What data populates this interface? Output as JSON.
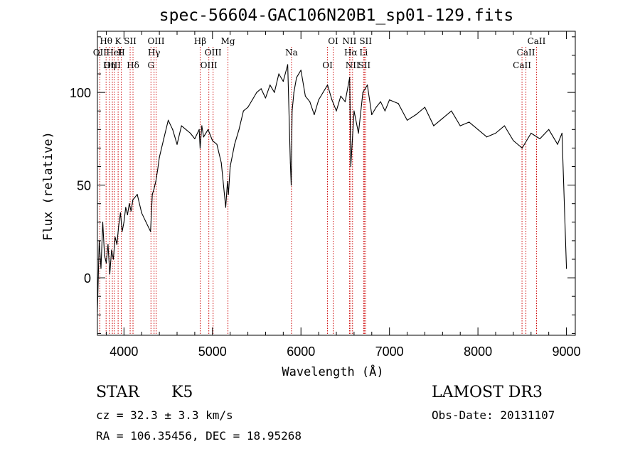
{
  "chart_data": {
    "type": "line",
    "title": "spec-56604-GAC106N20B1_sp01-129.fits",
    "xlabel": "Wavelength (Å)",
    "ylabel": "Flux (relative)",
    "xlim": [
      3700,
      9100
    ],
    "ylim": [
      -31,
      133
    ],
    "x_ticks": [
      4000,
      5000,
      6000,
      7000,
      8000,
      9000
    ],
    "y_ticks": [
      0,
      50,
      100
    ],
    "grid": false,
    "line_color": "#000000",
    "marker_color": "#cc0000",
    "series": [
      {
        "x": [
          3700,
          3720,
          3740,
          3760,
          3780,
          3800,
          3820,
          3840,
          3860,
          3880,
          3900,
          3920,
          3940,
          3960,
          3980,
          4000,
          4020,
          4040,
          4060,
          4080,
          4100,
          4150,
          4200,
          4250,
          4300,
          4320,
          4340,
          4360,
          4380,
          4400,
          4450,
          4500,
          4550,
          4600,
          4650,
          4700,
          4750,
          4800,
          4850,
          4860,
          4880,
          4900,
          4950,
          5000,
          5050,
          5100,
          5150,
          5170,
          5180,
          5200,
          5250,
          5300,
          5350,
          5400,
          5450,
          5500,
          5550,
          5600,
          5650,
          5700,
          5750,
          5800,
          5850,
          5880,
          5890,
          5900,
          5920,
          5950,
          6000,
          6050,
          6100,
          6150,
          6200,
          6250,
          6300,
          6350,
          6400,
          6450,
          6500,
          6550,
          6563,
          6600,
          6650,
          6700,
          6750,
          6800,
          6850,
          6900,
          6950,
          7000,
          7100,
          7200,
          7300,
          7400,
          7500,
          7600,
          7700,
          7800,
          7900,
          8000,
          8100,
          8200,
          8300,
          8400,
          8500,
          8600,
          8700,
          8800,
          8900,
          8950,
          9000
        ],
        "y": [
          -18,
          20,
          5,
          30,
          12,
          8,
          18,
          2,
          15,
          10,
          22,
          18,
          28,
          35,
          25,
          30,
          38,
          34,
          40,
          36,
          42,
          45,
          35,
          30,
          25,
          45,
          48,
          52,
          58,
          65,
          75,
          85,
          80,
          72,
          82,
          80,
          78,
          75,
          80,
          70,
          82,
          76,
          80,
          74,
          72,
          62,
          38,
          52,
          45,
          60,
          72,
          80,
          90,
          92,
          96,
          100,
          102,
          97,
          104,
          100,
          110,
          106,
          115,
          62,
          50,
          90,
          100,
          108,
          112,
          98,
          95,
          88,
          96,
          100,
          104,
          96,
          90,
          98,
          95,
          108,
          60,
          90,
          78,
          100,
          104,
          88,
          92,
          95,
          90,
          96,
          94,
          85,
          88,
          92,
          82,
          86,
          90,
          82,
          84,
          80,
          76,
          78,
          82,
          74,
          70,
          78,
          75,
          80,
          72,
          78,
          5
        ]
      }
    ],
    "line_markers": [
      {
        "label": "Hθ",
        "x": 3798
      },
      {
        "label": "OII",
        "x": 3727
      },
      {
        "label": "OIII",
        "x": 3869
      },
      {
        "label": "K",
        "x": 3934
      },
      {
        "label": "HeI",
        "x": 3889
      },
      {
        "label": "Hη",
        "x": 3835
      },
      {
        "label": "SII",
        "x": 4070
      },
      {
        "label": "H",
        "x": 3969
      },
      {
        "label": "Hδ",
        "x": 4102
      },
      {
        "label": "OIII",
        "x": 4363
      },
      {
        "label": "Hγ",
        "x": 4340
      },
      {
        "label": "G",
        "x": 4305
      },
      {
        "label": "Hβ",
        "x": 4861
      },
      {
        "label": "OIII",
        "x": 5007
      },
      {
        "label": "OIII",
        "x": 4959
      },
      {
        "label": "Mg",
        "x": 5175
      },
      {
        "label": "Na",
        "x": 5893
      },
      {
        "label": "OI",
        "x": 6300
      },
      {
        "label": "OI",
        "x": 6364
      },
      {
        "label": "Hα",
        "x": 6563
      },
      {
        "label": "SII",
        "x": 6716
      },
      {
        "label": "NII",
        "x": 6548
      },
      {
        "label": "Li",
        "x": 6708
      },
      {
        "label": "NII",
        "x": 6583
      },
      {
        "label": "SII",
        "x": 6731
      },
      {
        "label": "CaII",
        "x": 8542
      },
      {
        "label": "CaII",
        "x": 8498
      },
      {
        "label": "CaII",
        "x": 8662
      }
    ]
  },
  "info": {
    "object_class": "STAR",
    "subclass": "K5",
    "redshift_line": "cz = 32.3 ± 3.3 km/s",
    "coords_line": "RA = 106.35456, DEC =  18.95268",
    "survey": "LAMOST DR3",
    "obs_date_line": "Obs-Date: 20131107"
  }
}
